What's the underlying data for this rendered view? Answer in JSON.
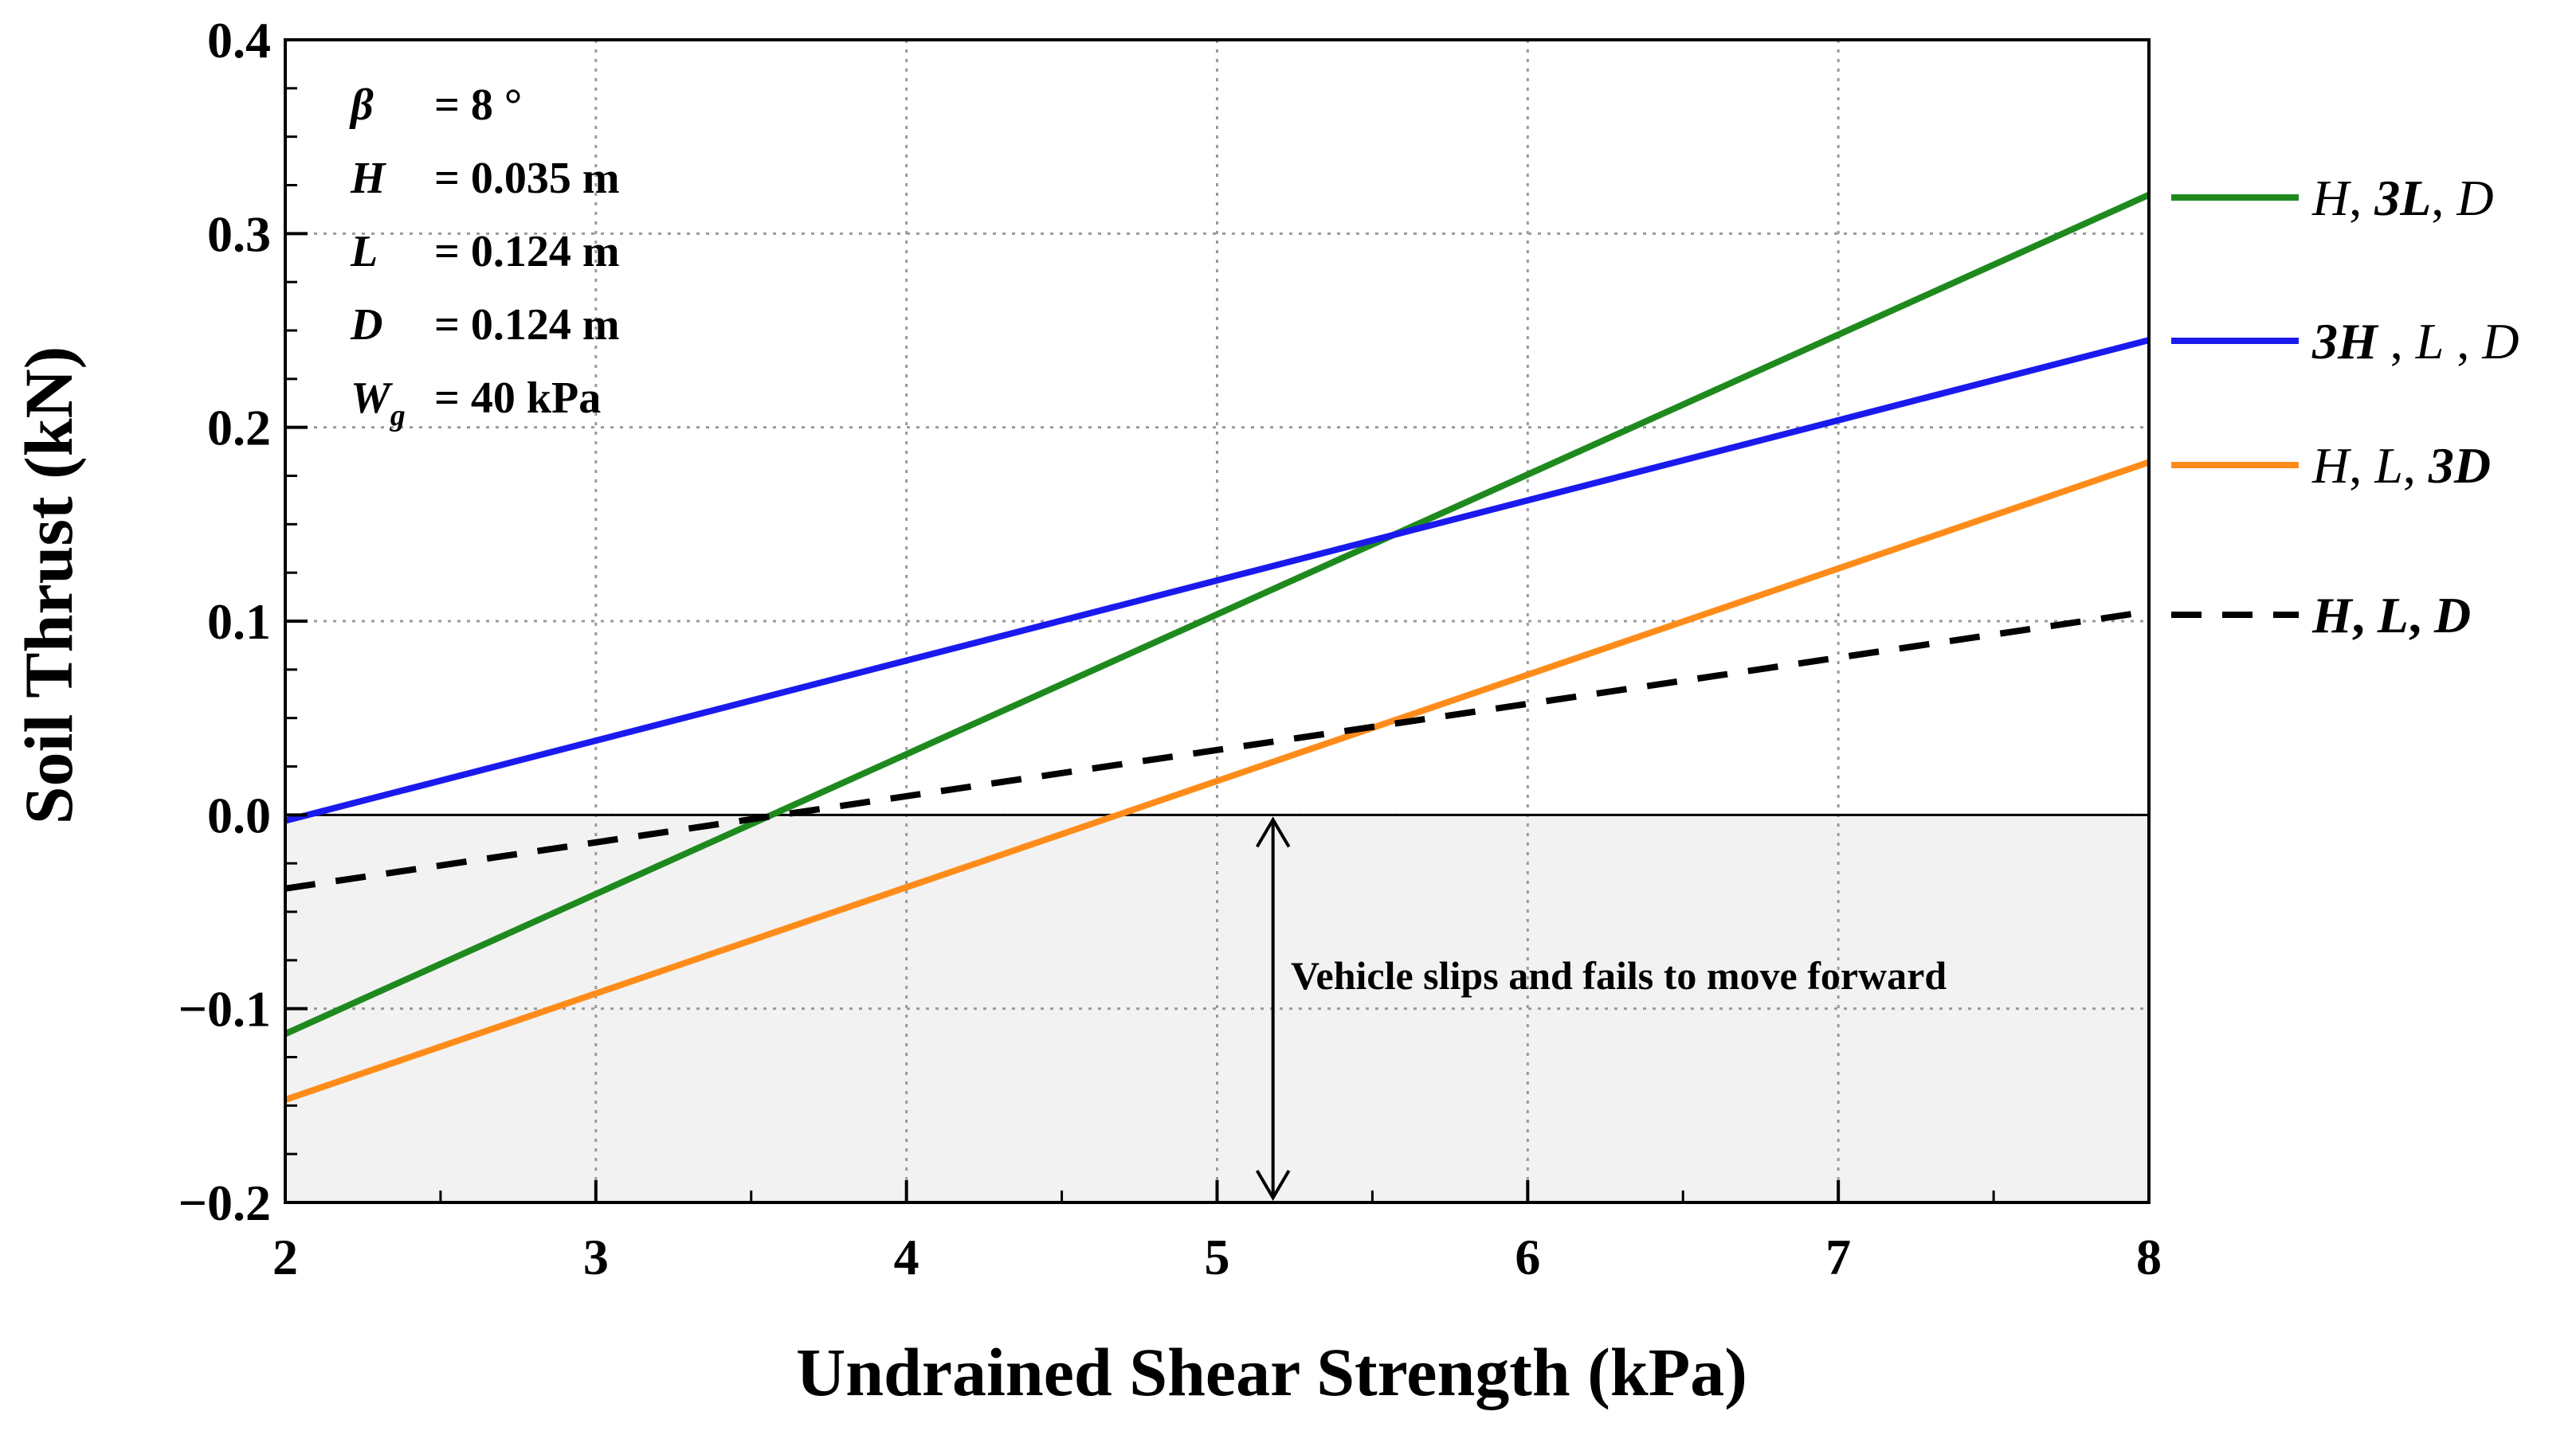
{
  "chart_data": {
    "type": "line",
    "xlabel": "Undrained Shear Strength (kPa)",
    "ylabel": "Soil Thrust (kN)",
    "xlim": [
      2,
      8
    ],
    "ylim": [
      -0.2,
      0.4
    ],
    "xticks": [
      2,
      3,
      4,
      5,
      6,
      7,
      8
    ],
    "xtick_labels": [
      "2",
      "3",
      "4",
      "5",
      "6",
      "7",
      "8"
    ],
    "yticks": [
      -0.2,
      -0.1,
      0.0,
      0.1,
      0.2,
      0.3,
      0.4
    ],
    "ytick_labels": [
      "−0.2",
      "−0.1",
      "0.0",
      "0.1",
      "0.2",
      "0.3",
      "0.4"
    ],
    "grid": true,
    "x": [
      2,
      8
    ],
    "series": [
      {
        "name": "H, 3L, D",
        "color": "#1e8a1e",
        "dash": "solid",
        "values": [
          -0.113,
          0.32
        ],
        "legend": [
          {
            "t": "H",
            "b": false,
            "i": true
          },
          {
            "t": ", ",
            "b": false,
            "i": false
          },
          {
            "t": "3L",
            "b": true,
            "i": true
          },
          {
            "t": ", ",
            "b": false,
            "i": false
          },
          {
            "t": "D",
            "b": false,
            "i": true
          }
        ]
      },
      {
        "name": "3H, L, D",
        "color": "#1a1aee",
        "dash": "solid",
        "values": [
          -0.003,
          0.245
        ],
        "legend": [
          {
            "t": "3H",
            "b": true,
            "i": true
          },
          {
            "t": " , ",
            "b": false,
            "i": false
          },
          {
            "t": "L",
            "b": false,
            "i": true
          },
          {
            "t": " , ",
            "b": false,
            "i": false
          },
          {
            "t": "D",
            "b": false,
            "i": true
          }
        ]
      },
      {
        "name": "H, L, 3D",
        "color": "#ff8c1a",
        "dash": "solid",
        "values": [
          -0.147,
          0.182
        ],
        "legend": [
          {
            "t": "H",
            "b": false,
            "i": true
          },
          {
            "t": ", ",
            "b": false,
            "i": false
          },
          {
            "t": "L",
            "b": false,
            "i": true
          },
          {
            "t": ", ",
            "b": false,
            "i": false
          },
          {
            "t": "3D",
            "b": true,
            "i": true
          }
        ]
      },
      {
        "name": "H, L, D",
        "color": "#000000",
        "dash": "dashed",
        "values": [
          -0.038,
          0.105
        ],
        "legend": [
          {
            "t": "H",
            "b": true,
            "i": true
          },
          {
            "t": ", ",
            "b": true,
            "i": false
          },
          {
            "t": "L",
            "b": true,
            "i": true
          },
          {
            "t": ", ",
            "b": true,
            "i": false
          },
          {
            "t": "D",
            "b": true,
            "i": true
          }
        ]
      }
    ],
    "shaded_region": {
      "x": [
        2,
        8
      ],
      "y": [
        -0.2,
        0.0
      ],
      "color": "#f2f2f2"
    },
    "parameters": [
      {
        "symbol": "β",
        "sub": "",
        "value": "= 8 °"
      },
      {
        "symbol": "H",
        "sub": "",
        "value": "= 0.035 m"
      },
      {
        "symbol": "L",
        "sub": "",
        "value": "= 0.124 m"
      },
      {
        "symbol": "D",
        "sub": "",
        "value": "= 0.124 m"
      },
      {
        "symbol": "W",
        "sub": "g",
        "value": "= 40 kPa"
      }
    ],
    "annotation": {
      "text": "Vehicle slips and fails to move forward",
      "arrow_x": 5.18,
      "arrow_y": [
        0.0,
        -0.2
      ]
    },
    "legend_position": "right"
  }
}
